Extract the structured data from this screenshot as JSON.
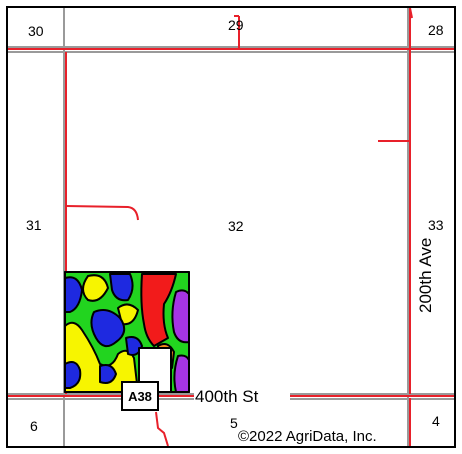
{
  "map": {
    "sections": {
      "s30": "30",
      "s29": "29",
      "s28": "28",
      "s31": "31",
      "s32": "32",
      "s33": "33",
      "s6": "6",
      "s5": "5",
      "s4": "4"
    },
    "roads": {
      "east_west": "400th St",
      "north_south": "200th Ave"
    },
    "highway_shield": "A38",
    "copyright": "©2022 AgriData, Inc.",
    "colors": {
      "road": "#e8202a",
      "section_line": "#999999",
      "soil_green": "#22d41f",
      "soil_yellow": "#f7f500",
      "soil_blue": "#1e29e0",
      "soil_red": "#f21b1b",
      "soil_purple": "#a535e3",
      "soil_orange": "#f28a1c"
    }
  }
}
